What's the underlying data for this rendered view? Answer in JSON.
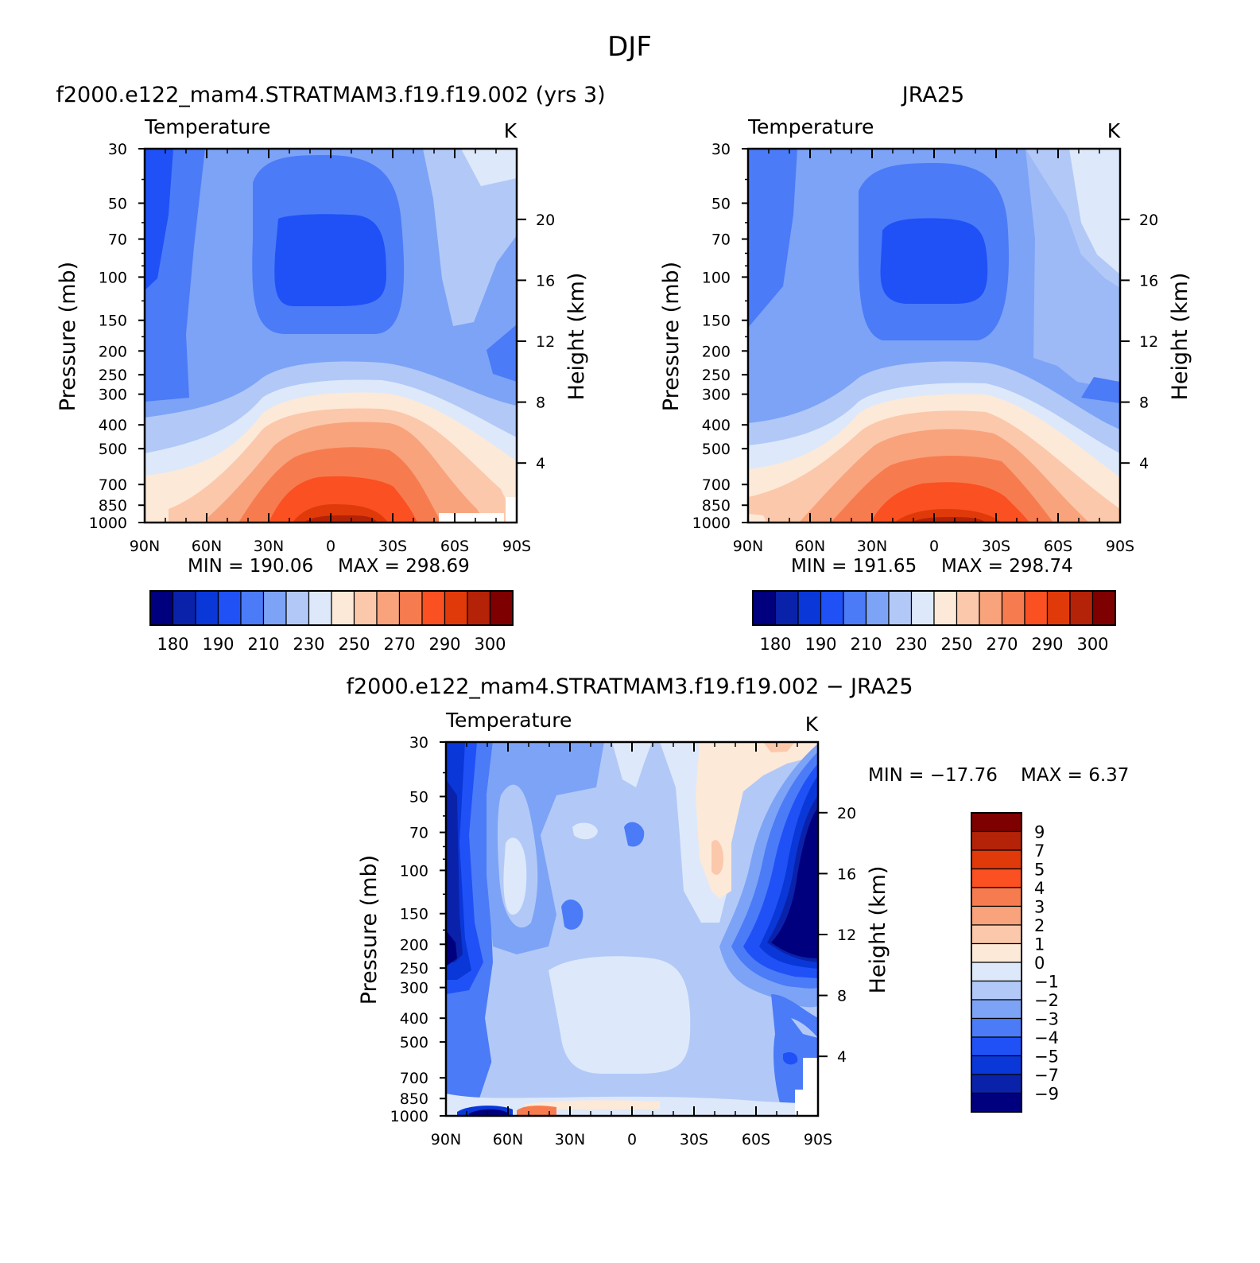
{
  "figure": {
    "title": "DJF",
    "panel_top_left_title": "f2000.e122_mam4.STRATMAM3.f19.f19.002 (yrs 3)",
    "panel_top_right_title": "JRA25",
    "panel_bottom_title": "f2000.e122_mam4.STRATMAM3.f19.f19.002 − JRA25"
  },
  "chart_data": [
    {
      "type": "heatmap",
      "title": "f2000.e122_mam4.STRATMAM3.f19.f19.002 (yrs 3)",
      "subtitle_left": "Temperature",
      "units": "K",
      "xlabel": "",
      "ylabel": "Pressure (mb)",
      "y2label": "Height (km)",
      "x_ticks": [
        "90N",
        "60N",
        "30N",
        "0",
        "30S",
        "60S",
        "90S"
      ],
      "y_ticks": [
        "30",
        "50",
        "70",
        "100",
        "150",
        "200",
        "250",
        "300",
        "400",
        "500",
        "700",
        "850",
        "1000"
      ],
      "y2_ticks": [
        "20",
        "16",
        "12",
        "8",
        "4"
      ],
      "min_label": "MIN = 190.06",
      "max_label": "MAX = 298.69",
      "min": 190.06,
      "max": 298.69,
      "colorbar_labels": [
        "180",
        "190",
        "210",
        "230",
        "250",
        "270",
        "290",
        "300"
      ],
      "colorbar_colors": [
        "#00007f",
        "#0a22aa",
        "#0a37d8",
        "#1f51f7",
        "#4b7bf7",
        "#7da3f7",
        "#b2c9f7",
        "#dde9fa",
        "#fde9d8",
        "#fbc8ab",
        "#f8a37c",
        "#f67c4f",
        "#fa5022",
        "#e03a0a",
        "#b42308",
        "#7f0000"
      ]
    },
    {
      "type": "heatmap",
      "title": "JRA25",
      "subtitle_left": "Temperature",
      "units": "K",
      "xlabel": "",
      "ylabel": "Pressure (mb)",
      "y2label": "Height (km)",
      "x_ticks": [
        "90N",
        "60N",
        "30N",
        "0",
        "30S",
        "60S",
        "90S"
      ],
      "y_ticks": [
        "30",
        "50",
        "70",
        "100",
        "150",
        "200",
        "250",
        "300",
        "400",
        "500",
        "700",
        "850",
        "1000"
      ],
      "y2_ticks": [
        "20",
        "16",
        "12",
        "8",
        "4"
      ],
      "min_label": "MIN = 191.65",
      "max_label": "MAX = 298.74",
      "min": 191.65,
      "max": 298.74,
      "colorbar_labels": [
        "180",
        "190",
        "210",
        "230",
        "250",
        "270",
        "290",
        "300"
      ],
      "colorbar_colors": [
        "#00007f",
        "#0a22aa",
        "#0a37d8",
        "#1f51f7",
        "#4b7bf7",
        "#7da3f7",
        "#b2c9f7",
        "#dde9fa",
        "#fde9d8",
        "#fbc8ab",
        "#f8a37c",
        "#f67c4f",
        "#fa5022",
        "#e03a0a",
        "#b42308",
        "#7f0000"
      ]
    },
    {
      "type": "heatmap",
      "title": "f2000.e122_mam4.STRATMAM3.f19.f19.002 − JRA25",
      "subtitle_left": "Temperature",
      "units": "K",
      "xlabel": "",
      "ylabel": "Pressure (mb)",
      "y2label": "Height (km)",
      "x_ticks": [
        "90N",
        "60N",
        "30N",
        "0",
        "30S",
        "60S",
        "90S"
      ],
      "y_ticks": [
        "30",
        "50",
        "70",
        "100",
        "150",
        "200",
        "250",
        "300",
        "400",
        "500",
        "700",
        "850",
        "1000"
      ],
      "y2_ticks": [
        "20",
        "16",
        "12",
        "8",
        "4"
      ],
      "min_label": "MIN = −17.76",
      "max_label": "MAX = 6.37",
      "min": -17.76,
      "max": 6.37,
      "colorbar_labels": [
        "9",
        "7",
        "5",
        "4",
        "3",
        "2",
        "1",
        "0",
        "−1",
        "−2",
        "−3",
        "−4",
        "−5",
        "−7",
        "−9"
      ],
      "colorbar_colors": [
        "#7f0000",
        "#b42308",
        "#e03a0a",
        "#fa5022",
        "#f67c4f",
        "#f8a37c",
        "#fbc8ab",
        "#fde9d8",
        "#dde9fa",
        "#b2c9f7",
        "#7da3f7",
        "#4b7bf7",
        "#1f51f7",
        "#0a37d8",
        "#0a22aa",
        "#00007f"
      ]
    }
  ]
}
